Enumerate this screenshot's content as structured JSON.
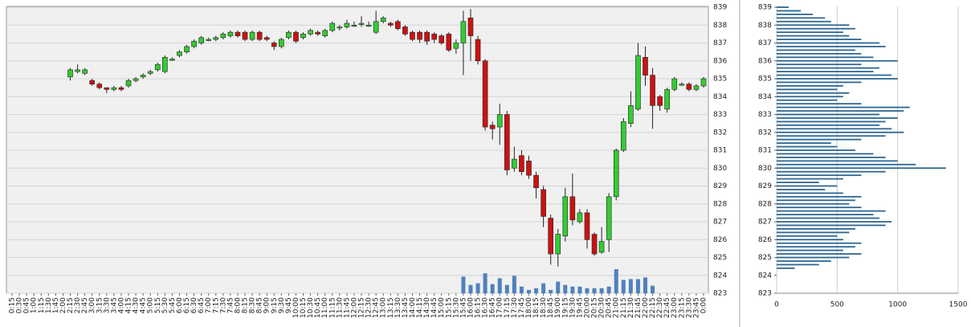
{
  "chart_data": [
    {
      "type": "candlestick",
      "categories": [
        "0:15",
        "0:30",
        "0:45",
        "1:00",
        "1:15",
        "1:30",
        "1:45",
        "2:00",
        "2:15",
        "2:30",
        "2:45",
        "3:00",
        "3:15",
        "3:30",
        "3:45",
        "4:00",
        "4:15",
        "4:30",
        "4:45",
        "5:00",
        "5:15",
        "5:30",
        "5:45",
        "6:00",
        "6:15",
        "6:30",
        "6:45",
        "7:00",
        "7:15",
        "7:30",
        "7:45",
        "8:00",
        "8:15",
        "8:30",
        "8:45",
        "9:00",
        "9:15",
        "9:30",
        "9:45",
        "10:00",
        "10:15",
        "10:30",
        "10:45",
        "11:00",
        "11:15",
        "11:30",
        "11:45",
        "12:00",
        "12:15",
        "12:30",
        "12:45",
        "13:00",
        "13:15",
        "13:30",
        "13:45",
        "14:00",
        "14:15",
        "14:30",
        "14:45",
        "15:00",
        "15:15",
        "15:30",
        "15:45",
        "16:00",
        "16:15",
        "16:30",
        "16:45",
        "17:00",
        "17:15",
        "17:30",
        "17:45",
        "18:00",
        "18:15",
        "18:30",
        "18:45",
        "19:00",
        "19:15",
        "19:30",
        "19:45",
        "20:00",
        "20:15",
        "20:30",
        "20:45",
        "21:00",
        "21:15",
        "21:30",
        "21:45",
        "22:00",
        "22:15",
        "22:30",
        "22:45",
        "23:00",
        "23:15",
        "23:30",
        "23:45",
        "0:00"
      ],
      "open": [
        null,
        null,
        null,
        null,
        null,
        null,
        null,
        null,
        835.1,
        835.4,
        835.3,
        834.9,
        834.7,
        834.5,
        834.4,
        834.5,
        834.6,
        834.9,
        835.1,
        835.3,
        835.5,
        835.4,
        836.1,
        836.3,
        836.5,
        836.8,
        837.0,
        837.2,
        837.2,
        837.3,
        837.4,
        837.6,
        837.6,
        837.2,
        837.6,
        837.3,
        837.0,
        836.8,
        837.3,
        837.6,
        837.3,
        837.5,
        837.6,
        837.4,
        837.7,
        837.9,
        837.9,
        838.0,
        838.1,
        838.0,
        837.6,
        838.2,
        838.1,
        838.2,
        837.9,
        837.6,
        837.6,
        837.6,
        837.5,
        837.4,
        837.5,
        836.7,
        837.0,
        838.4,
        837.2,
        836.0,
        832.4,
        832.3,
        833.0,
        830.0,
        830.7,
        830.4,
        829.6,
        828.8,
        827.2,
        825.2,
        826.2,
        828.4,
        827.0,
        827.5,
        826.3,
        825.3,
        826.0,
        828.4,
        831.0,
        832.5,
        833.3,
        836.2,
        835.2,
        834.0,
        833.3,
        834.4,
        834.7,
        834.7,
        834.4,
        834.6
      ],
      "close": [
        null,
        null,
        null,
        null,
        null,
        null,
        null,
        null,
        835.5,
        835.5,
        835.5,
        834.7,
        834.5,
        834.4,
        834.5,
        834.4,
        834.9,
        835.0,
        835.2,
        835.4,
        835.8,
        836.2,
        836.1,
        836.5,
        836.8,
        837.1,
        837.3,
        837.2,
        837.3,
        837.5,
        837.6,
        837.4,
        837.2,
        837.6,
        837.2,
        837.2,
        836.8,
        837.2,
        837.6,
        837.1,
        837.5,
        837.7,
        837.5,
        837.7,
        838.1,
        837.9,
        838.1,
        838.0,
        838.1,
        838.0,
        838.2,
        838.4,
        838.0,
        837.8,
        837.5,
        837.2,
        837.2,
        837.1,
        837.2,
        837.0,
        836.6,
        837.0,
        838.2,
        837.4,
        836.0,
        832.3,
        832.2,
        833.0,
        829.9,
        830.5,
        829.8,
        829.6,
        828.9,
        827.3,
        825.2,
        826.3,
        828.4,
        827.1,
        827.5,
        826.0,
        825.2,
        825.9,
        828.4,
        831.0,
        832.6,
        833.5,
        836.3,
        835.2,
        833.5,
        833.5,
        834.4,
        835.0,
        834.7,
        834.4,
        834.6,
        835.0
      ],
      "high": [
        null,
        null,
        null,
        null,
        null,
        null,
        null,
        null,
        835.6,
        835.8,
        835.6,
        835.0,
        834.8,
        834.5,
        834.6,
        834.6,
        835.0,
        835.1,
        835.3,
        835.5,
        835.9,
        836.3,
        836.2,
        836.6,
        836.9,
        837.2,
        837.4,
        837.3,
        837.4,
        837.6,
        837.7,
        837.7,
        837.7,
        837.7,
        837.7,
        837.4,
        837.1,
        837.3,
        837.7,
        837.7,
        837.6,
        837.8,
        837.7,
        837.8,
        838.2,
        838.0,
        838.3,
        838.2,
        838.5,
        838.2,
        838.8,
        838.5,
        838.2,
        838.3,
        838.0,
        837.7,
        837.7,
        837.7,
        837.6,
        837.5,
        837.6,
        837.2,
        838.8,
        838.9,
        837.4,
        836.1,
        832.6,
        833.6,
        833.2,
        831.2,
        831.0,
        830.7,
        829.8,
        829.0,
        827.4,
        826.6,
        828.9,
        829.7,
        827.7,
        827.7,
        826.4,
        826.7,
        828.6,
        831.1,
        832.8,
        834.3,
        837.0,
        836.8,
        835.6,
        834.1,
        834.5,
        835.1,
        834.8,
        834.8,
        834.7,
        835.1
      ],
      "low": [
        null,
        null,
        null,
        null,
        null,
        null,
        null,
        null,
        834.9,
        835.3,
        835.2,
        834.6,
        834.4,
        834.2,
        834.3,
        834.3,
        834.5,
        834.8,
        835.0,
        835.2,
        835.4,
        835.3,
        836.0,
        836.2,
        836.4,
        836.7,
        836.9,
        837.1,
        837.1,
        837.2,
        837.3,
        837.3,
        837.1,
        837.1,
        837.1,
        837.1,
        836.6,
        836.7,
        837.2,
        837.0,
        837.2,
        837.4,
        837.4,
        837.3,
        837.6,
        837.7,
        837.8,
        837.9,
        837.9,
        837.9,
        837.5,
        838.1,
        837.9,
        837.7,
        837.4,
        837.1,
        837.0,
        836.9,
        837.0,
        836.9,
        836.5,
        836.4,
        835.2,
        836.0,
        835.8,
        832.1,
        831.6,
        831.3,
        829.6,
        829.8,
        829.6,
        829.4,
        828.3,
        826.7,
        824.6,
        824.5,
        825.9,
        826.8,
        826.9,
        825.5,
        825.1,
        825.2,
        825.3,
        828.2,
        830.9,
        832.3,
        833.2,
        834.6,
        832.2,
        833.2,
        833.1,
        834.3,
        834.6,
        834.3,
        834.3,
        834.5
      ],
      "volume": [
        null,
        null,
        null,
        null,
        null,
        null,
        null,
        null,
        null,
        null,
        null,
        null,
        null,
        null,
        null,
        null,
        null,
        null,
        null,
        null,
        null,
        null,
        null,
        null,
        null,
        null,
        null,
        null,
        null,
        null,
        null,
        null,
        null,
        null,
        null,
        null,
        null,
        null,
        null,
        null,
        null,
        null,
        null,
        null,
        null,
        null,
        null,
        null,
        null,
        null,
        null,
        null,
        null,
        null,
        null,
        null,
        null,
        null,
        null,
        null,
        null,
        null,
        20,
        10,
        12,
        24,
        11,
        18,
        10,
        21,
        8,
        4,
        6,
        12,
        4,
        14,
        10,
        8,
        8,
        6,
        6,
        6,
        8,
        29,
        16,
        17,
        17,
        19,
        9,
        null,
        null,
        null,
        null,
        null,
        null,
        null
      ],
      "ylim": [
        823,
        839
      ],
      "yticks": [
        823,
        824,
        825,
        826,
        827,
        828,
        829,
        830,
        831,
        832,
        833,
        834,
        835,
        836,
        837,
        838,
        839
      ],
      "up_color": "#33cc33",
      "down_color": "#cc1111",
      "volume_color": "#4f81bd",
      "grid": true
    },
    {
      "type": "hbar",
      "y": [
        824.4,
        824.6,
        824.8,
        825.0,
        825.2,
        825.4,
        825.6,
        825.8,
        826.0,
        826.2,
        826.4,
        826.6,
        826.8,
        827.0,
        827.2,
        827.4,
        827.6,
        827.8,
        828.0,
        828.2,
        828.4,
        828.6,
        828.8,
        829.0,
        829.2,
        829.4,
        829.6,
        829.8,
        830.0,
        830.2,
        830.4,
        830.6,
        830.8,
        831.0,
        831.2,
        831.4,
        831.6,
        831.8,
        832.0,
        832.2,
        832.4,
        832.6,
        832.8,
        833.0,
        833.2,
        833.4,
        833.6,
        833.8,
        834.0,
        834.2,
        834.4,
        834.6,
        834.8,
        835.0,
        835.2,
        835.4,
        835.6,
        835.8,
        836.0,
        836.2,
        836.4,
        836.6,
        836.8,
        837.0,
        837.2,
        837.4,
        837.6,
        837.8,
        838.0,
        838.2,
        838.4,
        838.6,
        838.8,
        839.0
      ],
      "values": [
        150,
        350,
        450,
        600,
        700,
        550,
        650,
        700,
        550,
        500,
        600,
        650,
        900,
        950,
        850,
        800,
        900,
        700,
        600,
        650,
        700,
        550,
        400,
        500,
        350,
        550,
        700,
        900,
        1400,
        1150,
        1000,
        900,
        800,
        650,
        500,
        450,
        700,
        900,
        1050,
        950,
        850,
        900,
        1000,
        850,
        1050,
        1100,
        700,
        500,
        550,
        600,
        500,
        550,
        700,
        1000,
        950,
        800,
        850,
        700,
        1000,
        800,
        700,
        650,
        900,
        850,
        700,
        600,
        550,
        650,
        600,
        450,
        400,
        300,
        200,
        100
      ],
      "xlim": [
        0,
        1500
      ],
      "xticks": [
        0,
        500,
        1000,
        1500
      ],
      "ylim": [
        823,
        839
      ],
      "yticks": [
        823,
        824,
        825,
        826,
        827,
        828,
        829,
        830,
        831,
        832,
        833,
        834,
        835,
        836,
        837,
        838,
        839
      ],
      "color": "#2f6690",
      "grid": true
    }
  ]
}
